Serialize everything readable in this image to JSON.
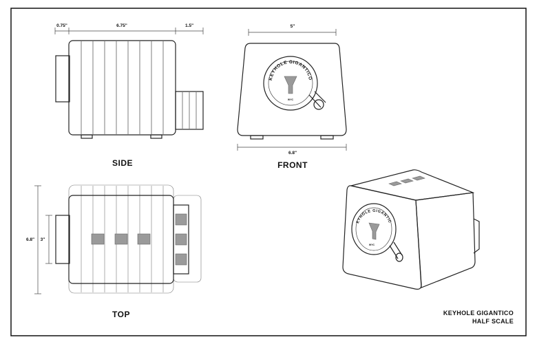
{
  "views": {
    "side": {
      "label": "SIDE"
    },
    "front": {
      "label": "FRONT"
    },
    "top": {
      "label": "TOP"
    }
  },
  "dimensions": {
    "side_left": "0.75\"",
    "side_body": "6.75\"",
    "side_right": "1.5\"",
    "front_top": "5\"",
    "front_bottom": "6.8\"",
    "top_outer": "6.8\"",
    "top_inner": "3\""
  },
  "logo": {
    "text": "KEYHOLE GIGANTICO",
    "maker": "WYC"
  },
  "title_block": {
    "line1": "KEYHOLE GIGANTICO",
    "line2": "HALF SCALE"
  }
}
